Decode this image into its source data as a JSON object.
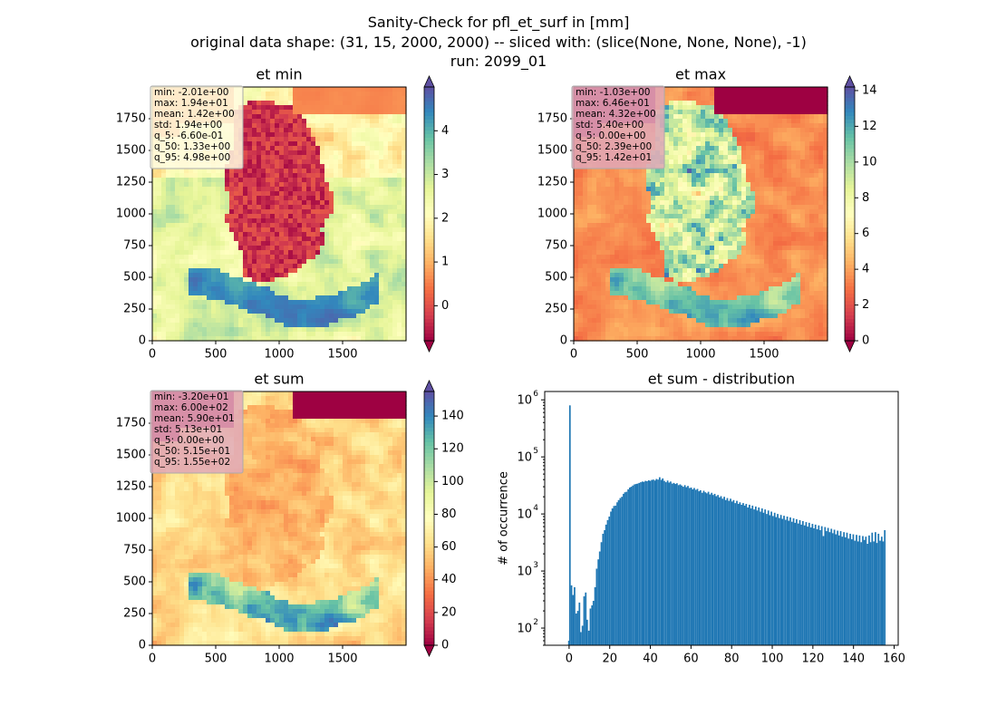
{
  "figure": {
    "title_lines": [
      "Sanity-Check for pfl_et_surf in [mm]",
      "original data shape: (31, 15, 2000, 2000) -- sliced with: (slice(None, None, None), -1)",
      "run: 2099_01"
    ]
  },
  "chart_data": [
    {
      "type": "heatmap",
      "title": "et min",
      "xlim": [
        0,
        2000
      ],
      "ylim": [
        0,
        2000
      ],
      "xticks": [
        0,
        500,
        1000,
        1500
      ],
      "yticks": [
        0,
        250,
        500,
        750,
        1000,
        1250,
        1500,
        1750
      ],
      "colormap": "Spectral",
      "colorbar": {
        "range": [
          -0.8,
          5.0
        ],
        "ticks": [
          0,
          1,
          2,
          3,
          4
        ],
        "extend": "both"
      },
      "stats": [
        "min: -2.01e+00",
        "max: 1.94e+01",
        "mean: 1.42e+00",
        "std: 1.94e+00",
        "q_5: -6.60e-01",
        "q_50: 1.33e+00",
        "q_95: 4.98e+00"
      ],
      "stats_box_color": "#fffbe0"
    },
    {
      "type": "heatmap",
      "title": "et max",
      "xlim": [
        0,
        2000
      ],
      "ylim": [
        0,
        2000
      ],
      "xticks": [
        0,
        500,
        1000,
        1500
      ],
      "yticks": [
        0,
        250,
        500,
        750,
        1000,
        1250,
        1500,
        1750
      ],
      "colormap": "Spectral",
      "colorbar": {
        "range": [
          0,
          14.2
        ],
        "ticks": [
          0,
          2,
          4,
          6,
          8,
          10,
          12,
          14
        ],
        "extend": "both"
      },
      "stats": [
        "min: -1.03e+00",
        "max: 6.46e+01",
        "mean: 4.32e+00",
        "std: 5.40e+00",
        "q_5: 0.00e+00",
        "q_50: 2.39e+00",
        "q_95: 1.42e+01"
      ],
      "stats_box_color": "#e0a8b8"
    },
    {
      "type": "heatmap",
      "title": "et sum",
      "xlim": [
        0,
        2000
      ],
      "ylim": [
        0,
        2000
      ],
      "xticks": [
        0,
        500,
        1000,
        1500
      ],
      "yticks": [
        0,
        250,
        500,
        750,
        1000,
        1250,
        1500,
        1750
      ],
      "colormap": "Spectral",
      "colorbar": {
        "range": [
          0,
          155
        ],
        "ticks": [
          0,
          20,
          40,
          60,
          80,
          100,
          120,
          140
        ],
        "extend": "both"
      },
      "stats": [
        "min: -3.20e+01",
        "max: 6.00e+02",
        "mean: 5.90e+01",
        "std: 5.13e+01",
        "q_5: 0.00e+00",
        "q_50: 5.15e+01",
        "q_95: 1.55e+02"
      ],
      "stats_box_color": "#e0a8b8"
    },
    {
      "type": "bar",
      "title": "et sum - distribution",
      "ylabel": "# of occurrence",
      "xlabel": "",
      "yscale": "log",
      "xlim": [
        -12,
        162
      ],
      "ylim": [
        50,
        1400000
      ],
      "xticks": [
        0,
        20,
        40,
        60,
        80,
        100,
        120,
        140,
        160
      ],
      "yticks": [
        100,
        1000,
        10000,
        100000,
        1000000
      ],
      "ytick_labels": [
        [
          "10",
          "2"
        ],
        [
          "10",
          "3"
        ],
        [
          "10",
          "4"
        ],
        [
          "10",
          "5"
        ],
        [
          "10",
          "6"
        ]
      ],
      "bar_color": "#1f77b4",
      "bin_width": 0.78,
      "bins": [
        [
          -0.5,
          60
        ],
        [
          0,
          800000
        ],
        [
          0.8,
          560
        ],
        [
          1.6,
          380
        ],
        [
          2.3,
          520
        ],
        [
          3.1,
          180
        ],
        [
          3.9,
          200
        ],
        [
          4.7,
          280
        ],
        [
          5.4,
          85
        ],
        [
          6.2,
          110
        ],
        [
          7.0,
          360
        ],
        [
          7.8,
          420
        ],
        [
          8.5,
          140
        ],
        [
          9.3,
          90
        ],
        [
          10.1,
          220
        ],
        [
          10.9,
          250
        ],
        [
          11.6,
          300
        ],
        [
          12.4,
          520
        ],
        [
          13.2,
          1100
        ],
        [
          14.0,
          1600
        ],
        [
          14.7,
          2200
        ],
        [
          15.5,
          3200
        ],
        [
          16.3,
          4500
        ],
        [
          17.1,
          5200
        ],
        [
          17.8,
          6500
        ],
        [
          18.6,
          7800
        ],
        [
          19.4,
          9000
        ],
        [
          20.2,
          11000
        ],
        [
          20.9,
          12500
        ],
        [
          21.7,
          13800
        ],
        [
          22.5,
          14000
        ],
        [
          23.3,
          16000
        ],
        [
          24.0,
          17500
        ],
        [
          24.8,
          19000
        ],
        [
          25.6,
          20000
        ],
        [
          26.4,
          22500
        ],
        [
          27.1,
          24000
        ],
        [
          27.9,
          24500
        ],
        [
          28.7,
          27000
        ],
        [
          29.5,
          29000
        ],
        [
          30.2,
          30000
        ],
        [
          31.0,
          31500
        ],
        [
          31.8,
          33000
        ],
        [
          32.6,
          33500
        ],
        [
          33.3,
          34000
        ],
        [
          34.1,
          35000
        ],
        [
          34.9,
          36000
        ],
        [
          35.7,
          37000
        ],
        [
          36.4,
          36500
        ],
        [
          37.2,
          38000
        ],
        [
          38.0,
          37500
        ],
        [
          38.8,
          39000
        ],
        [
          39.5,
          38000
        ],
        [
          40.3,
          39500
        ],
        [
          41.1,
          40000
        ],
        [
          41.9,
          38500
        ],
        [
          42.6,
          41000
        ],
        [
          43.4,
          40000
        ],
        [
          44.2,
          44000
        ],
        [
          45.0,
          39500
        ],
        [
          45.7,
          42000
        ],
        [
          46.5,
          38000
        ],
        [
          47.3,
          36000
        ],
        [
          48.1,
          38500
        ],
        [
          48.8,
          35500
        ],
        [
          49.6,
          37000
        ],
        [
          50.4,
          34000
        ],
        [
          51.2,
          35000
        ],
        [
          51.9,
          33500
        ],
        [
          52.7,
          34500
        ],
        [
          53.5,
          32000
        ],
        [
          54.3,
          33000
        ],
        [
          55.0,
          31500
        ],
        [
          55.8,
          30000
        ],
        [
          56.6,
          32000
        ],
        [
          57.4,
          29500
        ],
        [
          58.1,
          31000
        ],
        [
          58.9,
          28500
        ],
        [
          59.7,
          29000
        ],
        [
          60.5,
          27000
        ],
        [
          61.2,
          28500
        ],
        [
          62.0,
          26500
        ],
        [
          62.8,
          27500
        ],
        [
          63.6,
          25000
        ],
        [
          64.3,
          26000
        ],
        [
          65.1,
          23500
        ],
        [
          65.9,
          25500
        ],
        [
          66.7,
          24000
        ],
        [
          67.4,
          23000
        ],
        [
          68.2,
          24500
        ],
        [
          69.0,
          22000
        ],
        [
          69.8,
          23500
        ],
        [
          70.5,
          21500
        ],
        [
          71.3,
          22500
        ],
        [
          72.1,
          20500
        ],
        [
          72.9,
          21500
        ],
        [
          73.6,
          19500
        ],
        [
          74.4,
          20500
        ],
        [
          75.2,
          18500
        ],
        [
          76.0,
          20000
        ],
        [
          76.7,
          17500
        ],
        [
          77.5,
          19000
        ],
        [
          78.3,
          17000
        ],
        [
          79.1,
          18500
        ],
        [
          79.8,
          16500
        ],
        [
          80.6,
          17500
        ],
        [
          81.4,
          15500
        ],
        [
          82.2,
          17000
        ],
        [
          82.9,
          15000
        ],
        [
          83.7,
          16000
        ],
        [
          84.5,
          14500
        ],
        [
          85.3,
          15500
        ],
        [
          86.0,
          14000
        ],
        [
          86.8,
          15000
        ],
        [
          87.6,
          13000
        ],
        [
          88.4,
          14500
        ],
        [
          89.1,
          12500
        ],
        [
          89.9,
          14000
        ],
        [
          90.7,
          12000
        ],
        [
          91.5,
          13500
        ],
        [
          92.2,
          11500
        ],
        [
          93.0,
          13000
        ],
        [
          93.8,
          11000
        ],
        [
          94.6,
          12500
        ],
        [
          95.3,
          10500
        ],
        [
          96.1,
          12000
        ],
        [
          96.9,
          10000
        ],
        [
          97.7,
          11500
        ],
        [
          98.4,
          9500
        ],
        [
          99.2,
          11000
        ],
        [
          100.0,
          9200
        ],
        [
          100.8,
          10500
        ],
        [
          101.5,
          8800
        ],
        [
          102.3,
          10000
        ],
        [
          103.1,
          8500
        ],
        [
          103.9,
          9600
        ],
        [
          104.6,
          8200
        ],
        [
          105.4,
          9300
        ],
        [
          106.2,
          7900
        ],
        [
          107.0,
          9000
        ],
        [
          107.7,
          7600
        ],
        [
          108.5,
          8700
        ],
        [
          109.3,
          7300
        ],
        [
          110.1,
          8400
        ],
        [
          110.8,
          7000
        ],
        [
          111.6,
          8100
        ],
        [
          112.4,
          6800
        ],
        [
          113.2,
          7800
        ],
        [
          113.9,
          6500
        ],
        [
          114.7,
          7500
        ],
        [
          115.5,
          6300
        ],
        [
          116.3,
          7200
        ],
        [
          117.0,
          6000
        ],
        [
          117.8,
          7000
        ],
        [
          118.6,
          5800
        ],
        [
          119.4,
          6700
        ],
        [
          120.1,
          5600
        ],
        [
          120.9,
          6500
        ],
        [
          121.7,
          5400
        ],
        [
          122.5,
          6300
        ],
        [
          123.2,
          5200
        ],
        [
          124.0,
          6100
        ],
        [
          124.8,
          4100
        ],
        [
          125.6,
          5900
        ],
        [
          126.3,
          5000
        ],
        [
          127.1,
          5700
        ],
        [
          127.9,
          4800
        ],
        [
          128.7,
          5500
        ],
        [
          129.4,
          4600
        ],
        [
          130.2,
          5300
        ],
        [
          131.0,
          4400
        ],
        [
          131.8,
          5100
        ],
        [
          132.5,
          4200
        ],
        [
          133.3,
          5000
        ],
        [
          134.1,
          4000
        ],
        [
          134.9,
          4800
        ],
        [
          135.6,
          3900
        ],
        [
          136.4,
          4700
        ],
        [
          137.2,
          3700
        ],
        [
          138.0,
          4500
        ],
        [
          138.7,
          3600
        ],
        [
          139.5,
          4400
        ],
        [
          140.3,
          3400
        ],
        [
          141.1,
          4300
        ],
        [
          141.8,
          3300
        ],
        [
          142.6,
          4200
        ],
        [
          143.4,
          3200
        ],
        [
          144.2,
          4100
        ],
        [
          144.9,
          3500
        ],
        [
          145.7,
          4000
        ],
        [
          146.5,
          3000
        ],
        [
          147.3,
          4200
        ],
        [
          148.0,
          3200
        ],
        [
          148.8,
          4700
        ],
        [
          149.6,
          3300
        ],
        [
          150.4,
          4800
        ],
        [
          151.1,
          3100
        ],
        [
          151.9,
          4500
        ],
        [
          152.7,
          3400
        ],
        [
          153.5,
          4000
        ],
        [
          154.2,
          3300
        ],
        [
          155.0,
          5200
        ]
      ]
    }
  ]
}
